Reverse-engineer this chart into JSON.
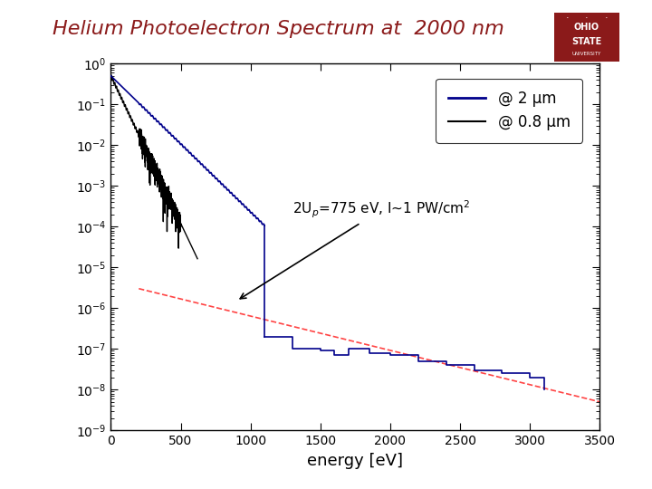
{
  "title": "Helium Photoelectron Spectrum at  2000 nm",
  "xlabel": "energy [eV]",
  "ylabel": "",
  "xlim": [
    0,
    3500
  ],
  "ylim_log": [
    -9,
    0
  ],
  "title_color": "#8B1A1A",
  "title_fontsize": 16,
  "background_color": "#ffffff",
  "line1_color": "#00008B",
  "line2_color": "#000000",
  "dashed_color": "#FF4444",
  "annotation_text": "2U$_p$=775 eV, I~1 PW/cm$^2$",
  "legend_labels": [
    "@ 2 μm",
    "@ 0.8 μm"
  ],
  "ohio_state_logo": true
}
